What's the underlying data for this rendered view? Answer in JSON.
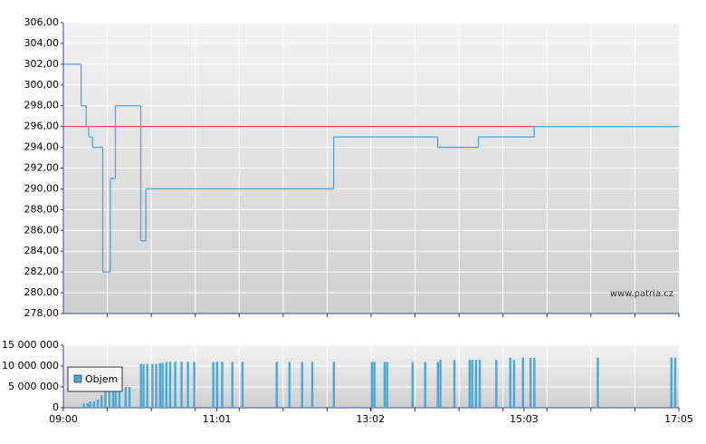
{
  "chart_data": [
    {
      "type": "line",
      "x": [
        "09:00",
        "09:14",
        "09:18",
        "09:20",
        "09:23",
        "09:31",
        "09:37",
        "09:41",
        "10:01",
        "10:05",
        "12:33",
        "13:55",
        "14:27",
        "15:11"
      ],
      "values": [
        302,
        298,
        296,
        295,
        294,
        282,
        291,
        298,
        285,
        290,
        295,
        294,
        295,
        296
      ],
      "color": "#4aa8d8",
      "reference_line": 296,
      "reference_color": "#e03030",
      "xlim": [
        "09:00",
        "17:05"
      ],
      "ylim": [
        278,
        306
      ],
      "yticks": [
        {
          "value": 278,
          "label": "278,00"
        },
        {
          "value": 280,
          "label": "280,00"
        },
        {
          "value": 282,
          "label": "282,00"
        },
        {
          "value": 284,
          "label": "284,00"
        },
        {
          "value": 286,
          "label": "286,00"
        },
        {
          "value": 288,
          "label": "288,00"
        },
        {
          "value": 290,
          "label": "290,00"
        },
        {
          "value": 292,
          "label": "292,00"
        },
        {
          "value": 294,
          "label": "294,00"
        },
        {
          "value": 296,
          "label": "296,00"
        },
        {
          "value": 298,
          "label": "298,00"
        },
        {
          "value": 300,
          "label": "300,00"
        },
        {
          "value": 302,
          "label": "302,00"
        },
        {
          "value": 304,
          "label": "304,00"
        },
        {
          "value": 306,
          "label": "306,00"
        }
      ],
      "grid": true,
      "watermark": "www.patria.cz"
    },
    {
      "type": "bar",
      "x": [
        "09:16",
        "09:19",
        "09:21",
        "09:24",
        "09:27",
        "09:30",
        "09:33",
        "09:36",
        "09:39",
        "09:41",
        "09:44",
        "09:49",
        "09:52",
        "10:01",
        "10:03",
        "10:06",
        "10:10",
        "10:13",
        "10:16",
        "10:18",
        "10:21",
        "10:24",
        "10:28",
        "10:33",
        "10:38",
        "10:43",
        "10:58",
        "11:01",
        "11:05",
        "11:13",
        "11:21",
        "11:48",
        "11:58",
        "12:08",
        "12:16",
        "12:33",
        "13:03",
        "13:05",
        "13:13",
        "13:15",
        "13:35",
        "13:45",
        "13:55",
        "13:57",
        "14:08",
        "14:20",
        "14:22",
        "14:25",
        "14:28",
        "14:41",
        "14:52",
        "14:55",
        "15:02",
        "15:08",
        "15:11",
        "16:01",
        "16:59",
        "17:02"
      ],
      "series": [
        {
          "name": "Objem",
          "color": "#4aa8d8",
          "values": [
            1000000,
            1000000,
            1500000,
            1500000,
            2000000,
            3000000,
            4500000,
            5000000,
            5500000,
            5500000,
            5000000,
            5000000,
            5000000,
            10500000,
            10500000,
            10500000,
            10500000,
            10500000,
            10700000,
            10800000,
            11000000,
            11000000,
            11000000,
            11000000,
            11000000,
            11000000,
            11000000,
            11000000,
            11000000,
            11000000,
            11000000,
            11000000,
            11000000,
            11000000,
            11000000,
            11000000,
            11000000,
            11000000,
            11000000,
            11000000,
            11000000,
            11000000,
            11000000,
            11500000,
            11500000,
            11500000,
            11500000,
            11500000,
            11500000,
            11500000,
            12000000,
            11500000,
            12000000,
            12000000,
            12000000,
            12000000,
            12000000,
            12000000
          ]
        }
      ],
      "xlim": [
        "09:00",
        "17:05"
      ],
      "xticks": [
        "09:00",
        "11:01",
        "13:02",
        "15:03",
        "17:05"
      ],
      "ylim": [
        0,
        15000000
      ],
      "yticks": [
        0,
        {
          "value": 5000000,
          "label": "5 000 000"
        },
        {
          "value": 10000000,
          "label": "10 000 000"
        },
        {
          "value": 15000000,
          "label": "15 000 000"
        }
      ],
      "grid": true
    }
  ]
}
